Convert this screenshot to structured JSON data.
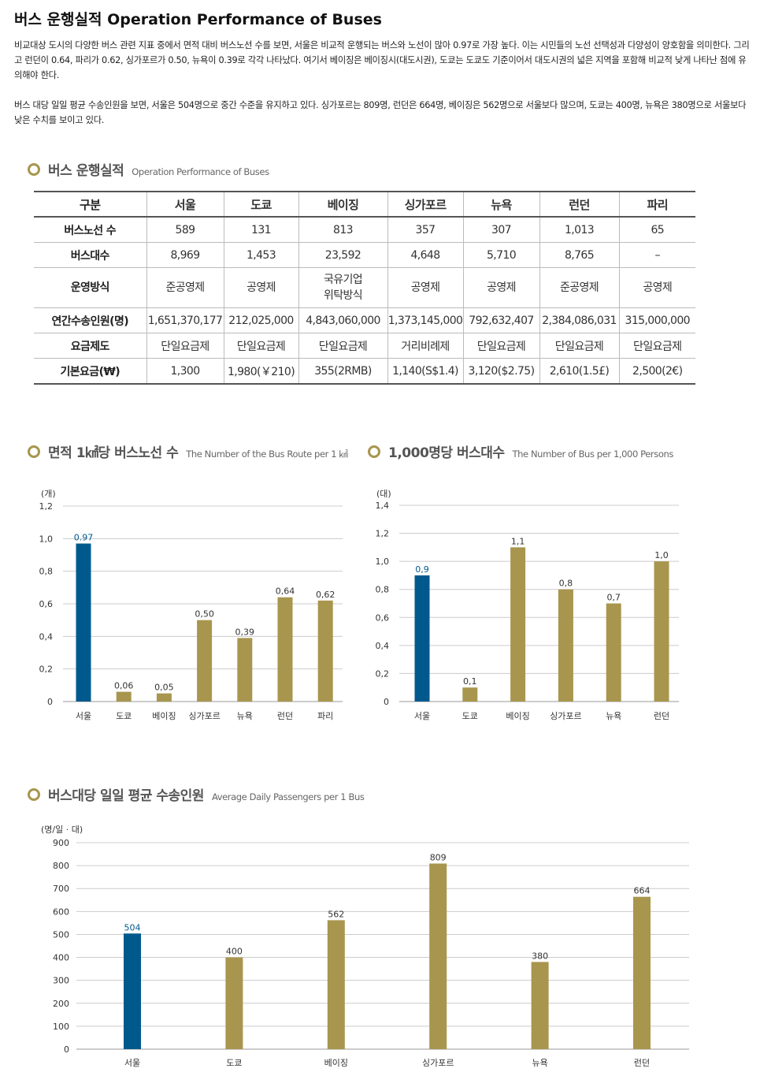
{
  "page_title": "버스 운행실적 Operation Performance of Buses",
  "paragraphs": [
    "비교대상 도시의 다양한 버스 관련 지표 중에서 면적 대비 버스노선 수를 보면, 서울은 비교적 운행되는 버스와 노선이 많아 0.97로 가장 높다. 이는 시민들의 노선 선택성과 다양성이 양호함을 의미한다. 그리고 런던이 0.64, 파리가 0.62, 싱가포르가 0.50, 뉴욕이 0.39로 각각 나타났다. 여기서 베이징은 베이징시(대도시권), 도쿄는 도쿄도 기준이어서 대도시권의 넓은 지역을 포함해 비교적 낮게 나타난 점에 유의해야 한다.",
    "버스 대당 일일 평균 수송인원을 보면, 서울은 504명으로 중간 수준을 유지하고 있다. 싱가포르는 809명, 런던은 664명, 베이징은 562명으로 서울보다 많으며, 도쿄는 400명, 뉴욕은 380명으로 서울보다 낮은 수치를 보이고 있다."
  ],
  "colors": {
    "seoul": "#00598c",
    "others": "#a8964e",
    "grid": "#cccccc"
  },
  "table_section": {
    "title_ko": "버스 운행실적",
    "title_en": "Operation Performance of Buses"
  },
  "table": {
    "headers": [
      "구분",
      "서울",
      "도쿄",
      "베이징",
      "싱가포르",
      "뉴욕",
      "런던",
      "파리"
    ],
    "rows": [
      [
        "버스노선 수",
        "589",
        "131",
        "813",
        "357",
        "307",
        "1,013",
        "65"
      ],
      [
        "버스대수",
        "8,969",
        "1,453",
        "23,592",
        "4,648",
        "5,710",
        "8,765",
        "–"
      ],
      [
        "운영방식",
        "준공영제",
        "공영제",
        "국유기업\n위탁방식",
        "공영제",
        "공영제",
        "준공영제",
        "공영제"
      ],
      [
        "연간수송인원(명)",
        "1,651,370,177",
        "212,025,000",
        "4,843,060,000",
        "1,373,145,000",
        "792,632,407",
        "2,384,086,031",
        "315,000,000"
      ],
      [
        "요금제도",
        "단일요금제",
        "단일요금제",
        "단일요금제",
        "거리비례제",
        "단일요금제",
        "단일요금제",
        "단일요금제"
      ],
      [
        "기본요금(₩)",
        "1,300",
        "1,980(￥210)",
        "355(2RMB)",
        "1,140(S$1.4)",
        "3,120($2.75)",
        "2,610(1.5£)",
        "2,500(2€)"
      ]
    ]
  },
  "chart_data": [
    {
      "type": "bar",
      "title_ko": "면적 1㎢당 버스노선 수",
      "title_en": "The Number of the Bus Route per 1 ㎢",
      "ylabel": "(개)",
      "categories": [
        "서울",
        "도쿄",
        "베이징",
        "싱가포르",
        "뉴욕",
        "런던",
        "파리"
      ],
      "values": [
        0.97,
        0.06,
        0.05,
        0.5,
        0.39,
        0.64,
        0.62
      ],
      "value_labels": [
        "0.97",
        "0,06",
        "0,05",
        "0,50",
        "0,39",
        "0,64",
        "0,62"
      ],
      "yticks": [
        "0",
        "0,2",
        "0,4",
        "0,6",
        "0,8",
        "1,0",
        "1,2"
      ],
      "ylim": [
        0,
        1.2
      ],
      "grid": true,
      "highlight": "서울"
    },
    {
      "type": "bar",
      "title_ko": "1,000명당 버스대수",
      "title_en": "The Number of Bus per 1,000 Persons",
      "ylabel": "(대)",
      "categories": [
        "서울",
        "도쿄",
        "베이징",
        "싱가포르",
        "뉴욕",
        "런던"
      ],
      "values": [
        0.9,
        0.1,
        1.1,
        0.8,
        0.7,
        1.0
      ],
      "value_labels": [
        "0,9",
        "0,1",
        "1,1",
        "0,8",
        "0,7",
        "1,0"
      ],
      "yticks": [
        "0",
        "0,2",
        "0,4",
        "0,6",
        "0,8",
        "1,0",
        "1,2",
        "1,4"
      ],
      "ylim": [
        0,
        1.4
      ],
      "grid": true,
      "highlight": "서울"
    },
    {
      "type": "bar",
      "title_ko": "버스대당 일일 평균 수송인원",
      "title_en": "Average Daily Passengers per 1 Bus",
      "ylabel": "(명/일 · 대)",
      "categories": [
        "서울",
        "도쿄",
        "베이징",
        "싱가포르",
        "뉴욕",
        "런던"
      ],
      "values": [
        504,
        400,
        562,
        809,
        380,
        664
      ],
      "value_labels": [
        "504",
        "400",
        "562",
        "809",
        "380",
        "664"
      ],
      "yticks": [
        "0",
        "100",
        "200",
        "300",
        "400",
        "500",
        "600",
        "700",
        "800",
        "900"
      ],
      "ylim": [
        0,
        900
      ],
      "grid": true,
      "highlight": "서울"
    }
  ]
}
